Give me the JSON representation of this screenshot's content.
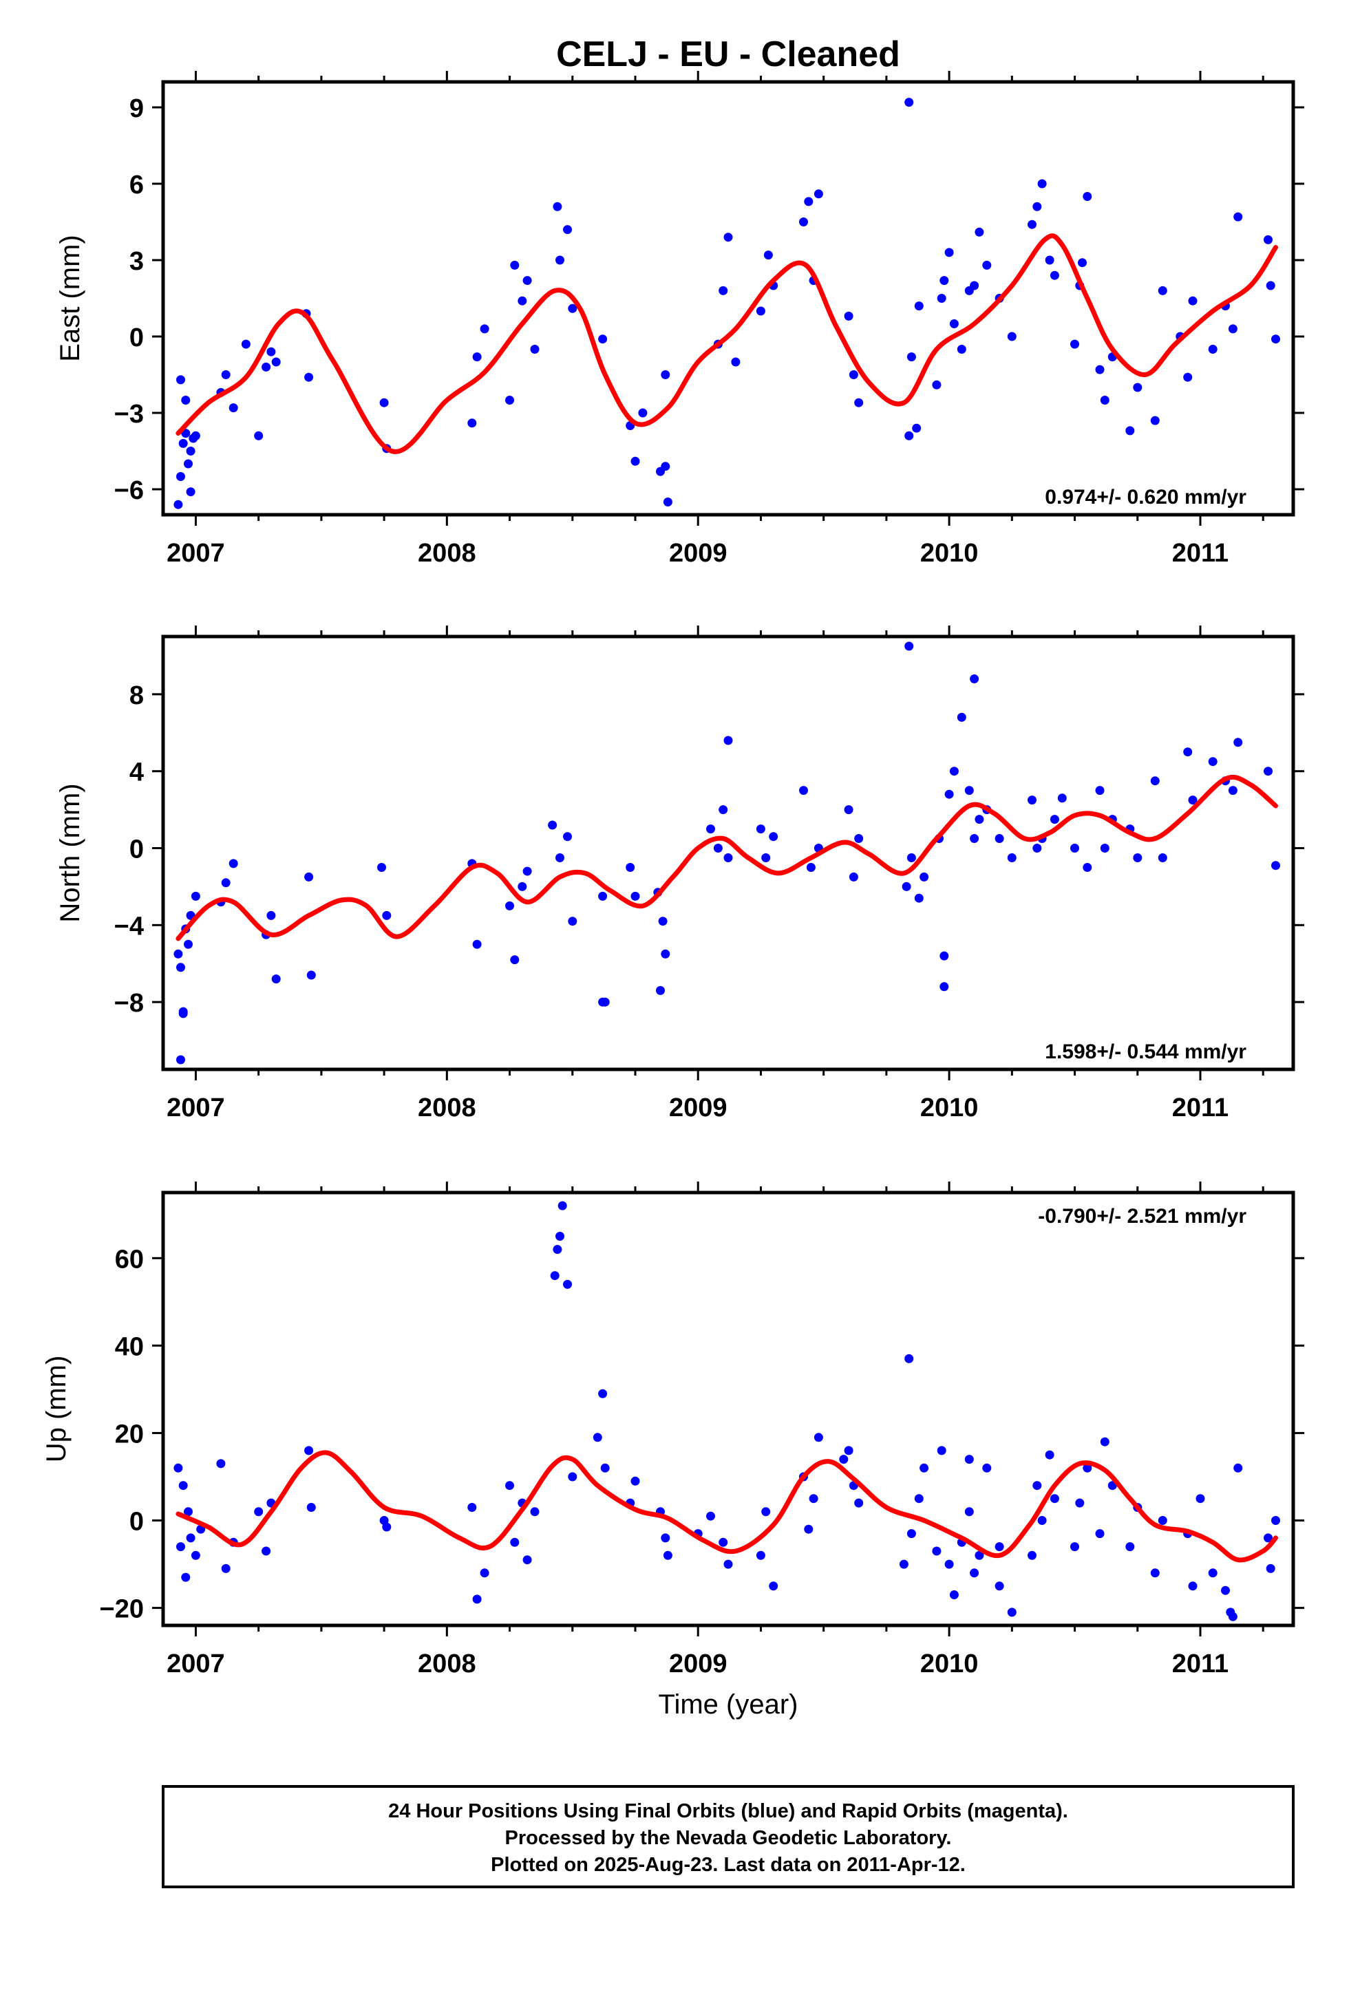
{
  "title": "CELJ  - EU - Cleaned",
  "footer": {
    "lines": [
      "24 Hour Positions Using Final Orbits (blue) and Rapid Orbits (magenta).",
      "Processed by the Nevada Geodetic Laboratory.",
      "Plotted on 2025-Aug-23. Last data on 2011-Apr-12."
    ]
  },
  "colors": {
    "points": "#0000ff",
    "fit": "#ff0000",
    "frame": "#000000"
  },
  "chart_data": [
    {
      "type": "scatter",
      "ylabel": "East (mm)",
      "xlim": [
        2006.87,
        2011.37
      ],
      "ylim": [
        -7,
        10
      ],
      "yticks": [
        -6,
        -3,
        0,
        3,
        6,
        9
      ],
      "xticks": [
        2007,
        2008,
        2009,
        2010,
        2011
      ],
      "xtick_labels": [
        "2007",
        "2008",
        "2009",
        "2010",
        "2011"
      ],
      "rate_text": "0.974+/- 0.620 mm/yr",
      "rate_position": "bottom-right",
      "series": [
        {
          "kind": "points",
          "x": [
            2006.93,
            2006.94,
            2006.95,
            2006.96,
            2006.97,
            2006.98,
            2006.99,
            2007.0,
            2006.94,
            2006.96,
            2006.98,
            2007.1,
            2007.12,
            2007.15,
            2007.2,
            2007.25,
            2007.28,
            2007.3,
            2007.32,
            2007.44,
            2007.45,
            2007.75,
            2007.76,
            2008.1,
            2008.12,
            2008.15,
            2008.25,
            2008.27,
            2008.3,
            2008.32,
            2008.35,
            2008.44,
            2008.45,
            2008.48,
            2008.5,
            2008.62,
            2008.73,
            2008.75,
            2008.78,
            2008.85,
            2008.87,
            2008.88,
            2009.08,
            2009.1,
            2009.12,
            2009.15,
            2009.25,
            2009.28,
            2009.3,
            2009.42,
            2009.44,
            2009.46,
            2009.48,
            2009.6,
            2009.62,
            2009.64,
            2009.84,
            2009.85,
            2009.87,
            2009.88,
            2009.95,
            2009.97,
            2010.0,
            2010.02,
            2010.05,
            2010.08,
            2010.1,
            2010.12,
            2010.15,
            2010.2,
            2010.25,
            2010.33,
            2010.35,
            2010.37,
            2010.4,
            2010.42,
            2010.5,
            2010.52,
            2010.55,
            2010.6,
            2010.62,
            2010.65,
            2010.72,
            2010.75,
            2010.82,
            2010.85,
            2010.92,
            2010.95,
            2010.97,
            2011.05,
            2011.1,
            2011.13,
            2011.15,
            2011.27,
            2011.28,
            2011.3,
            2009.84,
            2008.87,
            2010.53,
            2009.98
          ],
          "y": [
            -6.6,
            -5.5,
            -4.2,
            -3.8,
            -5.0,
            -4.5,
            -4.0,
            -3.9,
            -1.7,
            -2.5,
            -6.1,
            -2.2,
            -1.5,
            -2.8,
            -0.3,
            -3.9,
            -1.2,
            -0.6,
            -1.0,
            0.9,
            -1.6,
            -2.6,
            -4.4,
            -3.4,
            -0.8,
            0.3,
            -2.5,
            2.8,
            1.4,
            2.2,
            -0.5,
            5.1,
            3.0,
            4.2,
            1.1,
            -0.1,
            -3.5,
            -4.9,
            -3.0,
            -5.3,
            -1.5,
            -6.5,
            -0.3,
            1.8,
            3.9,
            -1.0,
            1.0,
            3.2,
            2.0,
            4.5,
            5.3,
            2.2,
            5.6,
            0.8,
            -1.5,
            -2.6,
            -3.9,
            -0.8,
            -3.6,
            1.2,
            -1.9,
            1.5,
            3.3,
            0.5,
            -0.5,
            1.8,
            2.0,
            4.1,
            2.8,
            1.5,
            0.0,
            4.4,
            5.1,
            6.0,
            3.0,
            2.4,
            -0.3,
            2.0,
            5.5,
            -1.3,
            -2.5,
            -0.8,
            -3.7,
            -2.0,
            -3.3,
            1.8,
            0.0,
            -1.6,
            1.4,
            -0.5,
            1.2,
            0.3,
            4.7,
            3.8,
            2.0,
            -0.1,
            9.2,
            -5.1,
            2.9,
            2.2
          ]
        },
        {
          "kind": "fit",
          "x": [
            2006.93,
            2007.05,
            2007.2,
            2007.33,
            2007.43,
            2007.55,
            2007.78,
            2008.0,
            2008.15,
            2008.3,
            2008.43,
            2008.53,
            2008.63,
            2008.75,
            2008.88,
            2009.0,
            2009.15,
            2009.3,
            2009.43,
            2009.55,
            2009.68,
            2009.82,
            2009.95,
            2010.1,
            2010.25,
            2010.38,
            2010.45,
            2010.55,
            2010.65,
            2010.78,
            2010.9,
            2011.05,
            2011.2,
            2011.3
          ],
          "y": [
            -3.8,
            -2.6,
            -1.6,
            0.5,
            0.9,
            -1.0,
            -4.5,
            -2.5,
            -1.4,
            0.5,
            1.8,
            1.1,
            -1.5,
            -3.4,
            -2.8,
            -1.0,
            0.3,
            2.2,
            2.8,
            0.4,
            -1.8,
            -2.6,
            -0.5,
            0.5,
            2.0,
            3.8,
            3.6,
            1.5,
            -0.5,
            -1.5,
            -0.3,
            1.0,
            2.0,
            3.5
          ]
        }
      ]
    },
    {
      "type": "scatter",
      "ylabel": "North (mm)",
      "xlim": [
        2006.87,
        2011.37
      ],
      "ylim": [
        -11.5,
        11
      ],
      "yticks": [
        -8,
        -4,
        0,
        4,
        8
      ],
      "xticks": [
        2007,
        2008,
        2009,
        2010,
        2011
      ],
      "xtick_labels": [
        "2007",
        "2008",
        "2009",
        "2010",
        "2011"
      ],
      "rate_text": "1.598+/- 0.544 mm/yr",
      "rate_position": "bottom-right",
      "series": [
        {
          "kind": "points",
          "x": [
            2006.93,
            2006.94,
            2006.95,
            2006.96,
            2006.97,
            2006.98,
            2007.0,
            2006.94,
            2007.1,
            2007.12,
            2007.15,
            2007.28,
            2007.3,
            2007.32,
            2007.45,
            2007.46,
            2007.74,
            2007.76,
            2008.1,
            2008.12,
            2008.25,
            2008.27,
            2008.3,
            2008.32,
            2008.42,
            2008.45,
            2008.48,
            2008.5,
            2008.62,
            2008.63,
            2008.73,
            2008.75,
            2008.84,
            2008.86,
            2008.87,
            2009.05,
            2009.08,
            2009.1,
            2009.12,
            2009.25,
            2009.27,
            2009.3,
            2009.42,
            2009.45,
            2009.48,
            2009.6,
            2009.62,
            2009.64,
            2009.83,
            2009.85,
            2009.88,
            2009.9,
            2009.96,
            2009.98,
            2010.0,
            2010.02,
            2010.05,
            2010.08,
            2010.1,
            2010.12,
            2010.15,
            2010.2,
            2010.25,
            2010.33,
            2010.35,
            2010.37,
            2010.42,
            2010.45,
            2010.5,
            2010.55,
            2010.6,
            2010.62,
            2010.65,
            2010.72,
            2010.75,
            2010.82,
            2010.85,
            2010.95,
            2010.97,
            2011.05,
            2011.1,
            2011.13,
            2011.15,
            2011.27,
            2011.3,
            2009.84,
            2010.1,
            2006.95,
            2008.62,
            2008.85,
            2009.12,
            2009.98
          ],
          "y": [
            -5.5,
            -6.2,
            -8.5,
            -4.2,
            -5.0,
            -3.5,
            -2.5,
            -11.0,
            -2.8,
            -1.8,
            -0.8,
            -4.5,
            -3.5,
            -6.8,
            -1.5,
            -6.6,
            -1.0,
            -3.5,
            -0.8,
            -5.0,
            -3.0,
            -5.8,
            -2.0,
            -1.2,
            1.2,
            -0.5,
            0.6,
            -3.8,
            -2.5,
            -8.0,
            -1.0,
            -2.5,
            -2.3,
            -3.8,
            -5.5,
            1.0,
            0.0,
            2.0,
            -0.5,
            1.0,
            -0.5,
            0.6,
            3.0,
            -1.0,
            0.0,
            2.0,
            -1.5,
            0.5,
            -2.0,
            -0.5,
            -2.6,
            -1.5,
            0.5,
            -5.6,
            2.8,
            4.0,
            6.8,
            3.0,
            0.5,
            1.5,
            2.0,
            0.5,
            -0.5,
            2.5,
            0.0,
            0.5,
            1.5,
            2.6,
            0.0,
            -1.0,
            3.0,
            0.0,
            1.5,
            1.0,
            -0.5,
            3.5,
            -0.5,
            5.0,
            2.5,
            4.5,
            3.5,
            3.0,
            5.5,
            4.0,
            -0.9,
            10.5,
            8.8,
            -8.6,
            -8.0,
            -7.4,
            5.6,
            -7.2
          ]
        },
        {
          "kind": "fit",
          "x": [
            2006.93,
            2007.05,
            2007.15,
            2007.3,
            2007.45,
            2007.58,
            2007.68,
            2007.8,
            2007.95,
            2008.1,
            2008.2,
            2008.32,
            2008.45,
            2008.55,
            2008.65,
            2008.78,
            2008.9,
            2009.0,
            2009.1,
            2009.2,
            2009.32,
            2009.45,
            2009.58,
            2009.68,
            2009.82,
            2009.95,
            2010.08,
            2010.18,
            2010.3,
            2010.4,
            2010.5,
            2010.6,
            2010.72,
            2010.82,
            2010.95,
            2011.1,
            2011.2,
            2011.3
          ],
          "y": [
            -4.7,
            -3.0,
            -2.8,
            -4.5,
            -3.5,
            -2.7,
            -3.0,
            -4.6,
            -3.0,
            -1.0,
            -1.3,
            -2.8,
            -1.5,
            -1.3,
            -2.2,
            -3.0,
            -1.5,
            0.0,
            0.5,
            -0.5,
            -1.3,
            -0.5,
            0.3,
            -0.3,
            -1.3,
            0.5,
            2.2,
            1.8,
            0.5,
            0.8,
            1.7,
            1.7,
            0.8,
            0.5,
            1.8,
            3.6,
            3.3,
            2.2
          ]
        }
      ]
    },
    {
      "type": "scatter",
      "ylabel": "Up (mm)",
      "xlim": [
        2006.87,
        2011.37
      ],
      "ylim": [
        -24,
        75
      ],
      "yticks": [
        -20,
        0,
        20,
        40,
        60
      ],
      "xticks": [
        2007,
        2008,
        2009,
        2010,
        2011
      ],
      "xtick_labels": [
        "2007",
        "2008",
        "2009",
        "2010",
        "2011"
      ],
      "rate_text": "-0.790+/- 2.521 mm/yr",
      "rate_position": "top-right",
      "series": [
        {
          "kind": "points",
          "x": [
            2006.93,
            2006.94,
            2006.95,
            2006.96,
            2006.97,
            2006.98,
            2007.0,
            2007.02,
            2007.1,
            2007.12,
            2007.15,
            2007.25,
            2007.28,
            2007.3,
            2007.45,
            2007.46,
            2007.75,
            2007.76,
            2008.1,
            2008.12,
            2008.15,
            2008.25,
            2008.27,
            2008.3,
            2008.32,
            2008.35,
            2008.43,
            2008.44,
            2008.45,
            2008.46,
            2008.48,
            2008.5,
            2008.6,
            2008.62,
            2008.63,
            2008.73,
            2008.75,
            2008.85,
            2008.87,
            2008.88,
            2009.0,
            2009.05,
            2009.1,
            2009.12,
            2009.25,
            2009.27,
            2009.3,
            2009.42,
            2009.44,
            2009.46,
            2009.48,
            2009.58,
            2009.6,
            2009.62,
            2009.64,
            2009.82,
            2009.84,
            2009.85,
            2009.88,
            2009.9,
            2009.95,
            2009.97,
            2010.0,
            2010.02,
            2010.05,
            2010.08,
            2010.1,
            2010.12,
            2010.15,
            2010.2,
            2010.25,
            2010.33,
            2010.35,
            2010.37,
            2010.4,
            2010.42,
            2010.5,
            2010.52,
            2010.55,
            2010.6,
            2010.62,
            2010.65,
            2010.72,
            2010.75,
            2010.82,
            2010.85,
            2010.95,
            2010.97,
            2011.0,
            2011.05,
            2011.1,
            2011.13,
            2011.15,
            2011.27,
            2011.28,
            2011.3,
            2010.08,
            2011.12,
            2010.2
          ],
          "y": [
            12.0,
            -6.0,
            8.0,
            -13.0,
            2.0,
            -4.0,
            -8.0,
            -2.0,
            13.0,
            -11.0,
            -5.0,
            2.0,
            -7.0,
            4.0,
            16.0,
            3.0,
            0.0,
            -1.5,
            3.0,
            -18.0,
            -12.0,
            8.0,
            -5.0,
            4.0,
            -9.0,
            2.0,
            56.0,
            62.0,
            65.0,
            72.0,
            54.0,
            10.0,
            19.0,
            29.0,
            12.0,
            4.0,
            9.0,
            2.0,
            -4.0,
            -8.0,
            -3.0,
            1.0,
            -5.0,
            -10.0,
            -8.0,
            2.0,
            -15.0,
            10.0,
            -2.0,
            5.0,
            19.0,
            14.0,
            16.0,
            8.0,
            4.0,
            -10.0,
            37.0,
            -3.0,
            5.0,
            12.0,
            -7.0,
            16.0,
            -10.0,
            -17.0,
            -5.0,
            2.0,
            -12.0,
            -8.0,
            12.0,
            -15.0,
            -21.0,
            -8.0,
            8.0,
            0.0,
            15.0,
            5.0,
            -6.0,
            4.0,
            12.0,
            -3.0,
            18.0,
            8.0,
            -6.0,
            3.0,
            -12.0,
            0.0,
            -3.0,
            -15.0,
            5.0,
            -12.0,
            -16.0,
            -22.0,
            12.0,
            -4.0,
            -11.0,
            0.0,
            14.0,
            -21.0,
            -6.0
          ]
        },
        {
          "kind": "fit",
          "x": [
            2006.93,
            2007.05,
            2007.18,
            2007.3,
            2007.42,
            2007.52,
            2007.62,
            2007.75,
            2007.9,
            2008.05,
            2008.17,
            2008.3,
            2008.42,
            2008.5,
            2008.6,
            2008.75,
            2008.88,
            2009.02,
            2009.15,
            2009.3,
            2009.42,
            2009.52,
            2009.62,
            2009.75,
            2009.9,
            2010.05,
            2010.2,
            2010.32,
            2010.42,
            2010.52,
            2010.62,
            2010.72,
            2010.82,
            2010.95,
            2011.05,
            2011.15,
            2011.25,
            2011.3
          ],
          "y": [
            1.5,
            -1.5,
            -5.5,
            2.0,
            12.0,
            15.5,
            11.0,
            3.0,
            1.0,
            -4.0,
            -6.0,
            2.5,
            12.5,
            14.0,
            8.0,
            2.5,
            0.5,
            -4.5,
            -7.0,
            -1.0,
            10.0,
            13.5,
            9.5,
            3.0,
            0.0,
            -4.0,
            -8.0,
            -1.0,
            8.0,
            13.0,
            11.5,
            5.0,
            -1.0,
            -2.5,
            -5.0,
            -9.0,
            -7.0,
            -4.0
          ]
        }
      ]
    }
  ],
  "xaxis_label": "Time (year)"
}
